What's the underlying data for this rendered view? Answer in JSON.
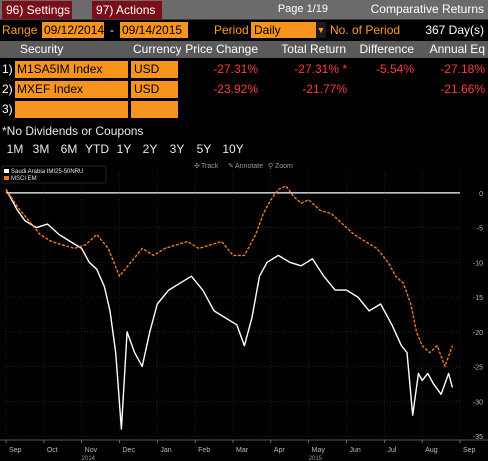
{
  "toolbar": {
    "settings_label": "96) Settings",
    "actions_label": "97) Actions",
    "page": "Page 1/19",
    "title": "Comparative Returns"
  },
  "range": {
    "label": "Range",
    "start": "09/12/2014",
    "dash": "-",
    "end": "09/14/2015",
    "period_label": "Period",
    "period_value": "Daily",
    "num_period_label": "No. of Period",
    "days": "367 Day(s)"
  },
  "table": {
    "headers": [
      "Security",
      "Currency",
      "Price Change",
      "Total Return",
      "Difference",
      "Annual Eq"
    ],
    "rows": [
      {
        "num": "1)",
        "security": "M1SA5IM Index",
        "currency": "USD",
        "price_change": "-27.31%",
        "total_return": "-27.31% *",
        "difference": "-5.54%",
        "annual_eq": "-27.18%"
      },
      {
        "num": "2)",
        "security": "MXEF Index",
        "currency": "USD",
        "price_change": "-23.92%",
        "total_return": "-21.77%",
        "difference": "",
        "annual_eq": "-21.66%"
      },
      {
        "num": "3)",
        "security": "",
        "currency": "",
        "price_change": "",
        "total_return": "",
        "difference": "",
        "annual_eq": ""
      }
    ]
  },
  "note": "*No Dividends or Coupons",
  "periods": [
    "1M",
    "3M",
    "6M",
    "YTD",
    "1Y",
    "2Y",
    "3Y",
    "5Y",
    "10Y"
  ],
  "chart_tools": [
    "Track",
    "Annotate",
    "Zoom"
  ],
  "colors": {
    "accent_orange": "#f7941d",
    "label_orange": "#ff9a2e",
    "negative_red": "#ff3b3b",
    "toolbar_red": "#7a0f1a",
    "series_white": "#ffffff",
    "series_orange": "#f07a1a"
  },
  "chart_data": {
    "type": "line",
    "legend": [
      "Saudi Arabia IMI25-50NRU",
      "MSCI EM"
    ],
    "x_ticks": [
      "Sep",
      "Oct",
      "Nov",
      "Dec",
      "Jan",
      "Feb",
      "Mar",
      "Apr",
      "May",
      "Jun",
      "Jul",
      "Aug",
      "Sep"
    ],
    "year_labels": [
      "2014",
      "2015"
    ],
    "ylim": [
      -35,
      3
    ],
    "y_ticks": [
      0,
      -5,
      -10,
      -15,
      -20,
      -25,
      -30,
      -35
    ],
    "series": [
      {
        "name": "Saudi Arabia IMI25-50NRU",
        "color": "#ffffff",
        "x": [
          0,
          0.3,
          0.5,
          0.8,
          1.1,
          1.4,
          1.7,
          2.0,
          2.2,
          2.4,
          2.6,
          2.75,
          2.9,
          3.05,
          3.2,
          3.4,
          3.6,
          3.8,
          4.0,
          4.3,
          4.6,
          4.9,
          5.2,
          5.5,
          5.8,
          6.1,
          6.3,
          6.5,
          6.7,
          6.9,
          7.2,
          7.5,
          7.8,
          8.1,
          8.4,
          8.7,
          9.0,
          9.3,
          9.6,
          9.9,
          10.2,
          10.45,
          10.6,
          10.75,
          10.9,
          11.0,
          11.15,
          11.3,
          11.5,
          11.7,
          11.8
        ],
        "values": [
          0.5,
          -2.5,
          -4,
          -5,
          -4.5,
          -6,
          -7,
          -8,
          -10,
          -11,
          -13.5,
          -17,
          -23,
          -34,
          -20,
          -23,
          -25,
          -20,
          -16,
          -14,
          -13,
          -12,
          -14,
          -17,
          -18,
          -19,
          -22,
          -18,
          -12,
          -10,
          -9,
          -10,
          -10.5,
          -9.5,
          -12,
          -14,
          -14,
          -15,
          -17,
          -16,
          -19,
          -22,
          -23,
          -32,
          -26,
          -27,
          -26,
          -27.5,
          -29,
          -26,
          -28
        ]
      },
      {
        "name": "MSCI EM",
        "color": "#f07a1a",
        "x": [
          0,
          0.3,
          0.6,
          0.9,
          1.2,
          1.5,
          1.8,
          2.1,
          2.4,
          2.7,
          3.0,
          3.3,
          3.6,
          3.9,
          4.2,
          4.5,
          4.8,
          5.1,
          5.4,
          5.7,
          6.0,
          6.3,
          6.6,
          6.8,
          7.0,
          7.2,
          7.4,
          7.6,
          7.8,
          8.0,
          8.3,
          8.6,
          8.9,
          9.2,
          9.5,
          9.8,
          10.1,
          10.3,
          10.5,
          10.7,
          10.85,
          11.0,
          11.2,
          11.4,
          11.6,
          11.8
        ],
        "values": [
          0.5,
          -2,
          -4,
          -6,
          -7,
          -7.5,
          -8,
          -7.5,
          -6,
          -8,
          -12,
          -10,
          -8,
          -9,
          -8,
          -7.5,
          -7,
          -8,
          -7.5,
          -7,
          -9,
          -9,
          -6,
          -3,
          -1,
          0.5,
          1,
          -0.5,
          -1.5,
          -1,
          -2.5,
          -3,
          -4.5,
          -6,
          -7,
          -8,
          -10,
          -12,
          -13,
          -16,
          -20,
          -22,
          -23,
          -22,
          -25,
          -22
        ]
      }
    ]
  }
}
